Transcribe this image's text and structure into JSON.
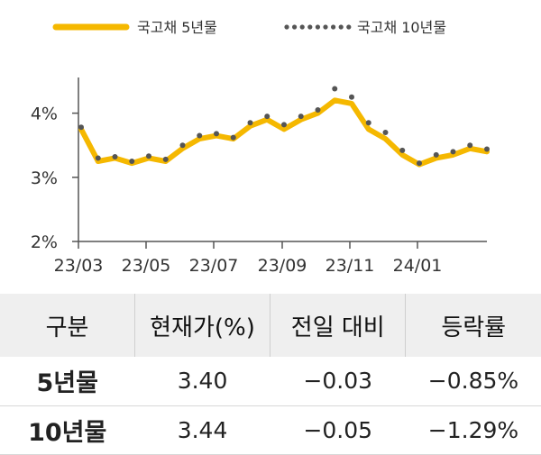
{
  "chart_data": {
    "type": "line",
    "title": "",
    "xlabel": "",
    "ylabel": "",
    "ylim": [
      2,
      4.5
    ],
    "yticks": [
      "2%",
      "3%",
      "4%"
    ],
    "ytick_values": [
      2,
      3,
      4
    ],
    "xticks": [
      "23/03",
      "23/05",
      "23/07",
      "23/09",
      "23/11",
      "24/01"
    ],
    "x": [
      "23/03/01",
      "23/03/15",
      "23/04/01",
      "23/04/15",
      "23/05/01",
      "23/05/15",
      "23/06/01",
      "23/06/15",
      "23/07/01",
      "23/07/15",
      "23/08/01",
      "23/08/15",
      "23/09/01",
      "23/09/15",
      "23/10/01",
      "23/10/10",
      "23/10/20",
      "23/11/01",
      "23/11/15",
      "23/12/01",
      "23/12/15",
      "24/01/01",
      "24/01/15",
      "24/02/01",
      "24/02/15"
    ],
    "series": [
      {
        "name": "국고채 5년물",
        "color": "#f5b800",
        "style": "solid",
        "values": [
          3.75,
          3.25,
          3.3,
          3.22,
          3.3,
          3.25,
          3.45,
          3.6,
          3.65,
          3.6,
          3.8,
          3.9,
          3.75,
          3.9,
          4.0,
          4.2,
          4.15,
          3.75,
          3.6,
          3.35,
          3.2,
          3.3,
          3.35,
          3.45,
          3.4
        ]
      },
      {
        "name": "국고채 10년물",
        "color": "#555555",
        "style": "dotted",
        "values": [
          3.78,
          3.3,
          3.32,
          3.25,
          3.33,
          3.28,
          3.5,
          3.65,
          3.68,
          3.62,
          3.85,
          3.95,
          3.82,
          3.95,
          4.05,
          4.38,
          4.25,
          3.85,
          3.7,
          3.42,
          3.22,
          3.35,
          3.4,
          3.5,
          3.44
        ]
      }
    ]
  },
  "table": {
    "headers": [
      "구분",
      "현재가(%)",
      "전일 대비",
      "등락률"
    ],
    "rows": [
      [
        "5년물",
        "3.40",
        "−0.03",
        "−0.85%"
      ],
      [
        "10년물",
        "3.44",
        "−0.05",
        "−1.29%"
      ]
    ]
  }
}
